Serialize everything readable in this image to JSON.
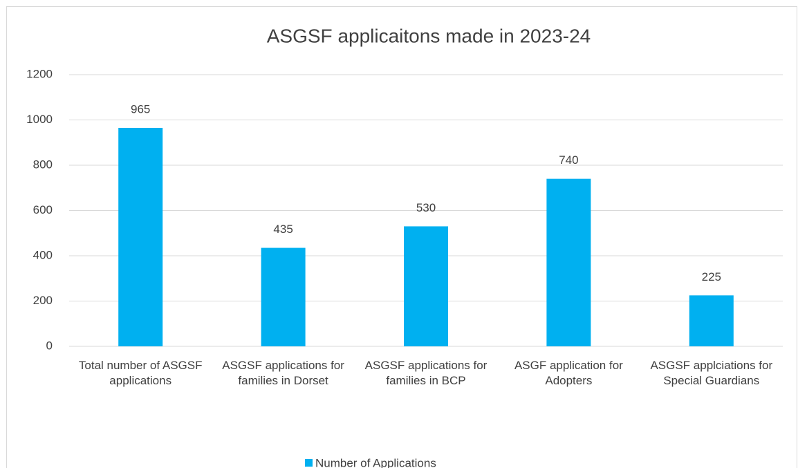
{
  "chart_data": {
    "type": "bar",
    "title": "ASGSF applicaitons made in 2023-24",
    "categories": [
      "Total number of ASGSF applications",
      "ASGSF applications for families in Dorset",
      "ASGSF applications for families in BCP",
      "ASGF application for Adopters",
      "ASGSF applciations for Special Guardians"
    ],
    "series": [
      {
        "name": "Number of Applications",
        "color": "#00b0f0",
        "values": [
          965,
          435,
          530,
          740,
          225
        ]
      }
    ],
    "ylim": [
      0,
      1200
    ],
    "yticks": [
      0,
      200,
      400,
      600,
      800,
      1000,
      1200
    ],
    "grid": true,
    "legend": "bottom"
  }
}
